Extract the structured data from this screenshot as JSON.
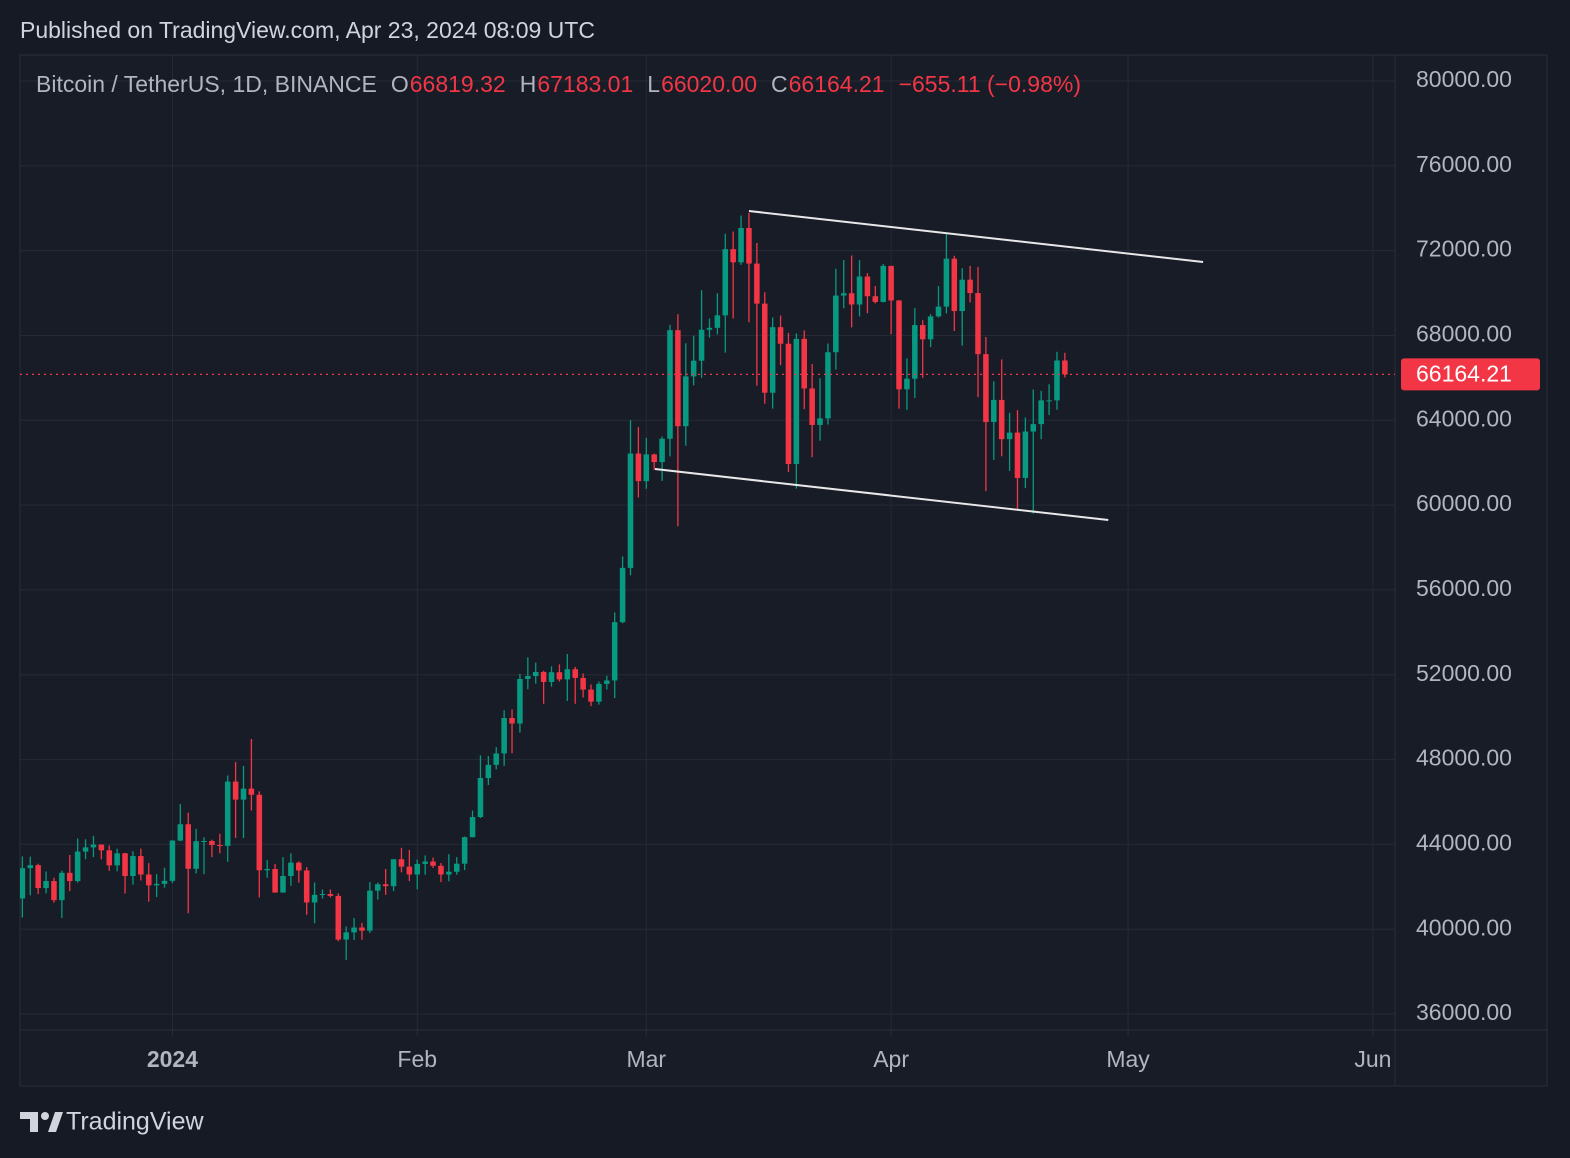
{
  "header": {
    "published": "Published on TradingView.com, Apr 23, 2024 08:09 UTC"
  },
  "chart_data": {
    "type": "candlestick",
    "symbol": "Bitcoin / TetherUS, 1D, BINANCE",
    "legend_ohlc": [
      {
        "key": "O",
        "value": "66819.32"
      },
      {
        "key": "H",
        "value": "67183.01"
      },
      {
        "key": "L",
        "value": "66020.00"
      },
      {
        "key": "C",
        "value": "66164.21"
      }
    ],
    "change": "−655.11 (−0.98%)",
    "up_color": "#089981",
    "down_color": "#f23645",
    "open": [
      41450,
      42880,
      43020,
      41940,
      42270,
      41370,
      42660,
      42270,
      43660,
      43860,
      43990,
      43720,
      43010,
      43580,
      42510,
      43450,
      42580,
      42070,
      42140,
      42280,
      44180,
      44950,
      42850,
      44150,
      44160,
      43970,
      43930,
      46960,
      46110,
      46630,
      46340,
      42780,
      42840,
      41730,
      42510,
      43140,
      42770,
      41260,
      41620,
      41660,
      41570,
      39510,
      39850,
      40080,
      39930,
      41820,
      42120,
      42030,
      43300,
      42950,
      42580,
      43080,
      43190,
      42990,
      42580,
      42710,
      43090,
      44340,
      45290,
      47130,
      47750,
      48290,
      49960,
      49700,
      51800,
      51940,
      52130,
      51660,
      52120,
      51780,
      52260,
      51850,
      51300,
      50730,
      51570,
      51730,
      54480,
      57040,
      62430,
      61130,
      62390,
      62030,
      63130,
      68250,
      63720,
      66070,
      66810,
      68270,
      68360,
      68950,
      72070,
      71450,
      73070,
      71390,
      69500,
      65300,
      68390,
      67610,
      61940,
      67840,
      65500,
      63780,
      64090,
      67210,
      69880,
      69990,
      69460,
      70780,
      69850,
      69580,
      71280,
      69650,
      65460,
      65960,
      68490,
      67820,
      68900,
      69360,
      71620,
      69150,
      70630,
      70000,
      67120,
      63920,
      64960,
      63110,
      63420,
      61280,
      63470,
      63820,
      64940,
      64940,
      66819.32
    ],
    "high": [
      43430,
      43420,
      43090,
      42720,
      42430,
      42760,
      43500,
      44280,
      44240,
      44400,
      44000,
      43950,
      43800,
      43600,
      43680,
      43800,
      43120,
      42600,
      42900,
      44200,
      45900,
      45500,
      44730,
      44340,
      44220,
      44500,
      47250,
      47890,
      47700,
      48970,
      46500,
      43260,
      43080,
      43400,
      43580,
      43200,
      42930,
      42200,
      41870,
      41870,
      41690,
      40130,
      40530,
      40300,
      42220,
      42200,
      42840,
      43300,
      43840,
      43740,
      43290,
      43480,
      43380,
      43120,
      43540,
      43400,
      44370,
      45600,
      48200,
      48170,
      48590,
      50330,
      50370,
      52040,
      52820,
      52570,
      52190,
      52400,
      52490,
      52980,
      52370,
      52060,
      51540,
      51680,
      51950,
      54940,
      57580,
      64000,
      63680,
      63170,
      62430,
      63230,
      68500,
      69000,
      67630,
      67990,
      70140,
      68800,
      69990,
      72800,
      72900,
      73650,
      73780,
      72360,
      70040,
      68850,
      68940,
      68120,
      68100,
      68240,
      66650,
      65980,
      67620,
      71150,
      71560,
      71770,
      71550,
      70940,
      70330,
      71370,
      71280,
      69670,
      66920,
      69290,
      68720,
      69000,
      70330,
      72800,
      71760,
      71170,
      71280,
      71230,
      67930,
      65840,
      66870,
      64360,
      64480,
      64130,
      65450,
      65390,
      65700,
      67230,
      67183.01
    ],
    "low": [
      40550,
      41600,
      41660,
      41690,
      41250,
      40530,
      41800,
      42200,
      43300,
      43400,
      43300,
      42750,
      42730,
      41680,
      42100,
      42300,
      41300,
      41520,
      41960,
      42180,
      44150,
      40750,
      42630,
      42600,
      43400,
      43580,
      43180,
      44300,
      44300,
      45600,
      41500,
      42430,
      41720,
      41720,
      42050,
      42190,
      40680,
      40280,
      41450,
      41500,
      39430,
      38550,
      39490,
      39500,
      39820,
      41400,
      41620,
      41800,
      42680,
      42270,
      41880,
      42570,
      42890,
      42220,
      42260,
      42570,
      42790,
      44330,
      45240,
      46800,
      47540,
      47700,
      48300,
      49270,
      51320,
      51580,
      50630,
      51440,
      51680,
      50760,
      50630,
      50930,
      50520,
      50590,
      51300,
      50900,
      54430,
      56690,
      60360,
      60770,
      61660,
      61140,
      62300,
      59000,
      62800,
      65650,
      66000,
      67900,
      68050,
      67190,
      68800,
      71330,
      68620,
      65630,
      64780,
      64550,
      66600,
      61560,
      60780,
      64530,
      62260,
      63040,
      63800,
      66390,
      69280,
      68380,
      68900,
      69050,
      69510,
      69560,
      68060,
      64550,
      64490,
      65050,
      66000,
      67450,
      68850,
      69040,
      68210,
      67520,
      69560,
      65090,
      60660,
      62130,
      62300,
      61610,
      59770,
      60800,
      59600,
      63110,
      64250,
      64500,
      66020.0
    ],
    "close": [
      42880,
      43020,
      41940,
      42270,
      41370,
      42660,
      42270,
      43660,
      43860,
      43990,
      43720,
      43010,
      43580,
      42510,
      43450,
      42580,
      42070,
      42140,
      42280,
      44180,
      44950,
      42850,
      44150,
      44160,
      43970,
      43930,
      46960,
      46110,
      46630,
      46340,
      42780,
      42840,
      41730,
      42510,
      43140,
      42770,
      41260,
      41620,
      41660,
      41570,
      39510,
      39850,
      40080,
      39930,
      41820,
      42120,
      42030,
      43300,
      42950,
      42580,
      43080,
      43190,
      42990,
      42580,
      42710,
      43090,
      44340,
      45290,
      47130,
      47750,
      48290,
      49960,
      49700,
      51800,
      51940,
      52130,
      51660,
      52120,
      51780,
      52260,
      51850,
      51300,
      50730,
      51570,
      51730,
      54480,
      57040,
      62430,
      61130,
      62390,
      62030,
      63130,
      68250,
      63720,
      66070,
      66810,
      68270,
      68360,
      68950,
      72070,
      71450,
      73070,
      71390,
      69500,
      65300,
      68390,
      67610,
      61940,
      67840,
      65500,
      63780,
      64090,
      67210,
      69880,
      69990,
      69460,
      70780,
      69850,
      69580,
      71280,
      69650,
      65460,
      65960,
      68490,
      67820,
      68900,
      69360,
      71620,
      69150,
      70630,
      70000,
      67120,
      63920,
      64960,
      63110,
      63420,
      61280,
      63470,
      63820,
      64940,
      64940,
      66819.32,
      66164.21
    ],
    "xlim": [
      -0.3,
      173.8
    ],
    "xticks": [
      {
        "value": 19,
        "label": "2024"
      },
      {
        "value": 50,
        "label": "Feb"
      },
      {
        "value": 79,
        "label": "Mar"
      },
      {
        "value": 110,
        "label": "Apr"
      },
      {
        "value": 140,
        "label": "May"
      },
      {
        "value": 171,
        "label": "Jun"
      }
    ],
    "ylim": [
      35247,
      81226
    ],
    "yticks": [
      {
        "value": 36000,
        "label": "36000.00"
      },
      {
        "value": 40000,
        "label": "40000.00"
      },
      {
        "value": 44000,
        "label": "44000.00"
      },
      {
        "value": 48000,
        "label": "48000.00"
      },
      {
        "value": 52000,
        "label": "52000.00"
      },
      {
        "value": 56000,
        "label": "56000.00"
      },
      {
        "value": 60000,
        "label": "60000.00"
      },
      {
        "value": 64000,
        "label": "64000.00"
      },
      {
        "value": 68000,
        "label": "68000.00"
      },
      {
        "value": 72000,
        "label": "72000.00"
      },
      {
        "value": 76000,
        "label": "76000.00"
      },
      {
        "value": 80000,
        "label": "80000.00"
      }
    ],
    "grid": true,
    "last_price": {
      "value": 66164.21,
      "label": "66164.21"
    },
    "trendlines": [
      {
        "x": [
          92,
          149.5
        ],
        "y": [
          73870,
          71464
        ]
      },
      {
        "x": [
          80.1,
          137.5
        ],
        "y": [
          61700,
          59300
        ]
      }
    ]
  },
  "footer": {
    "brand": "TradingView"
  }
}
